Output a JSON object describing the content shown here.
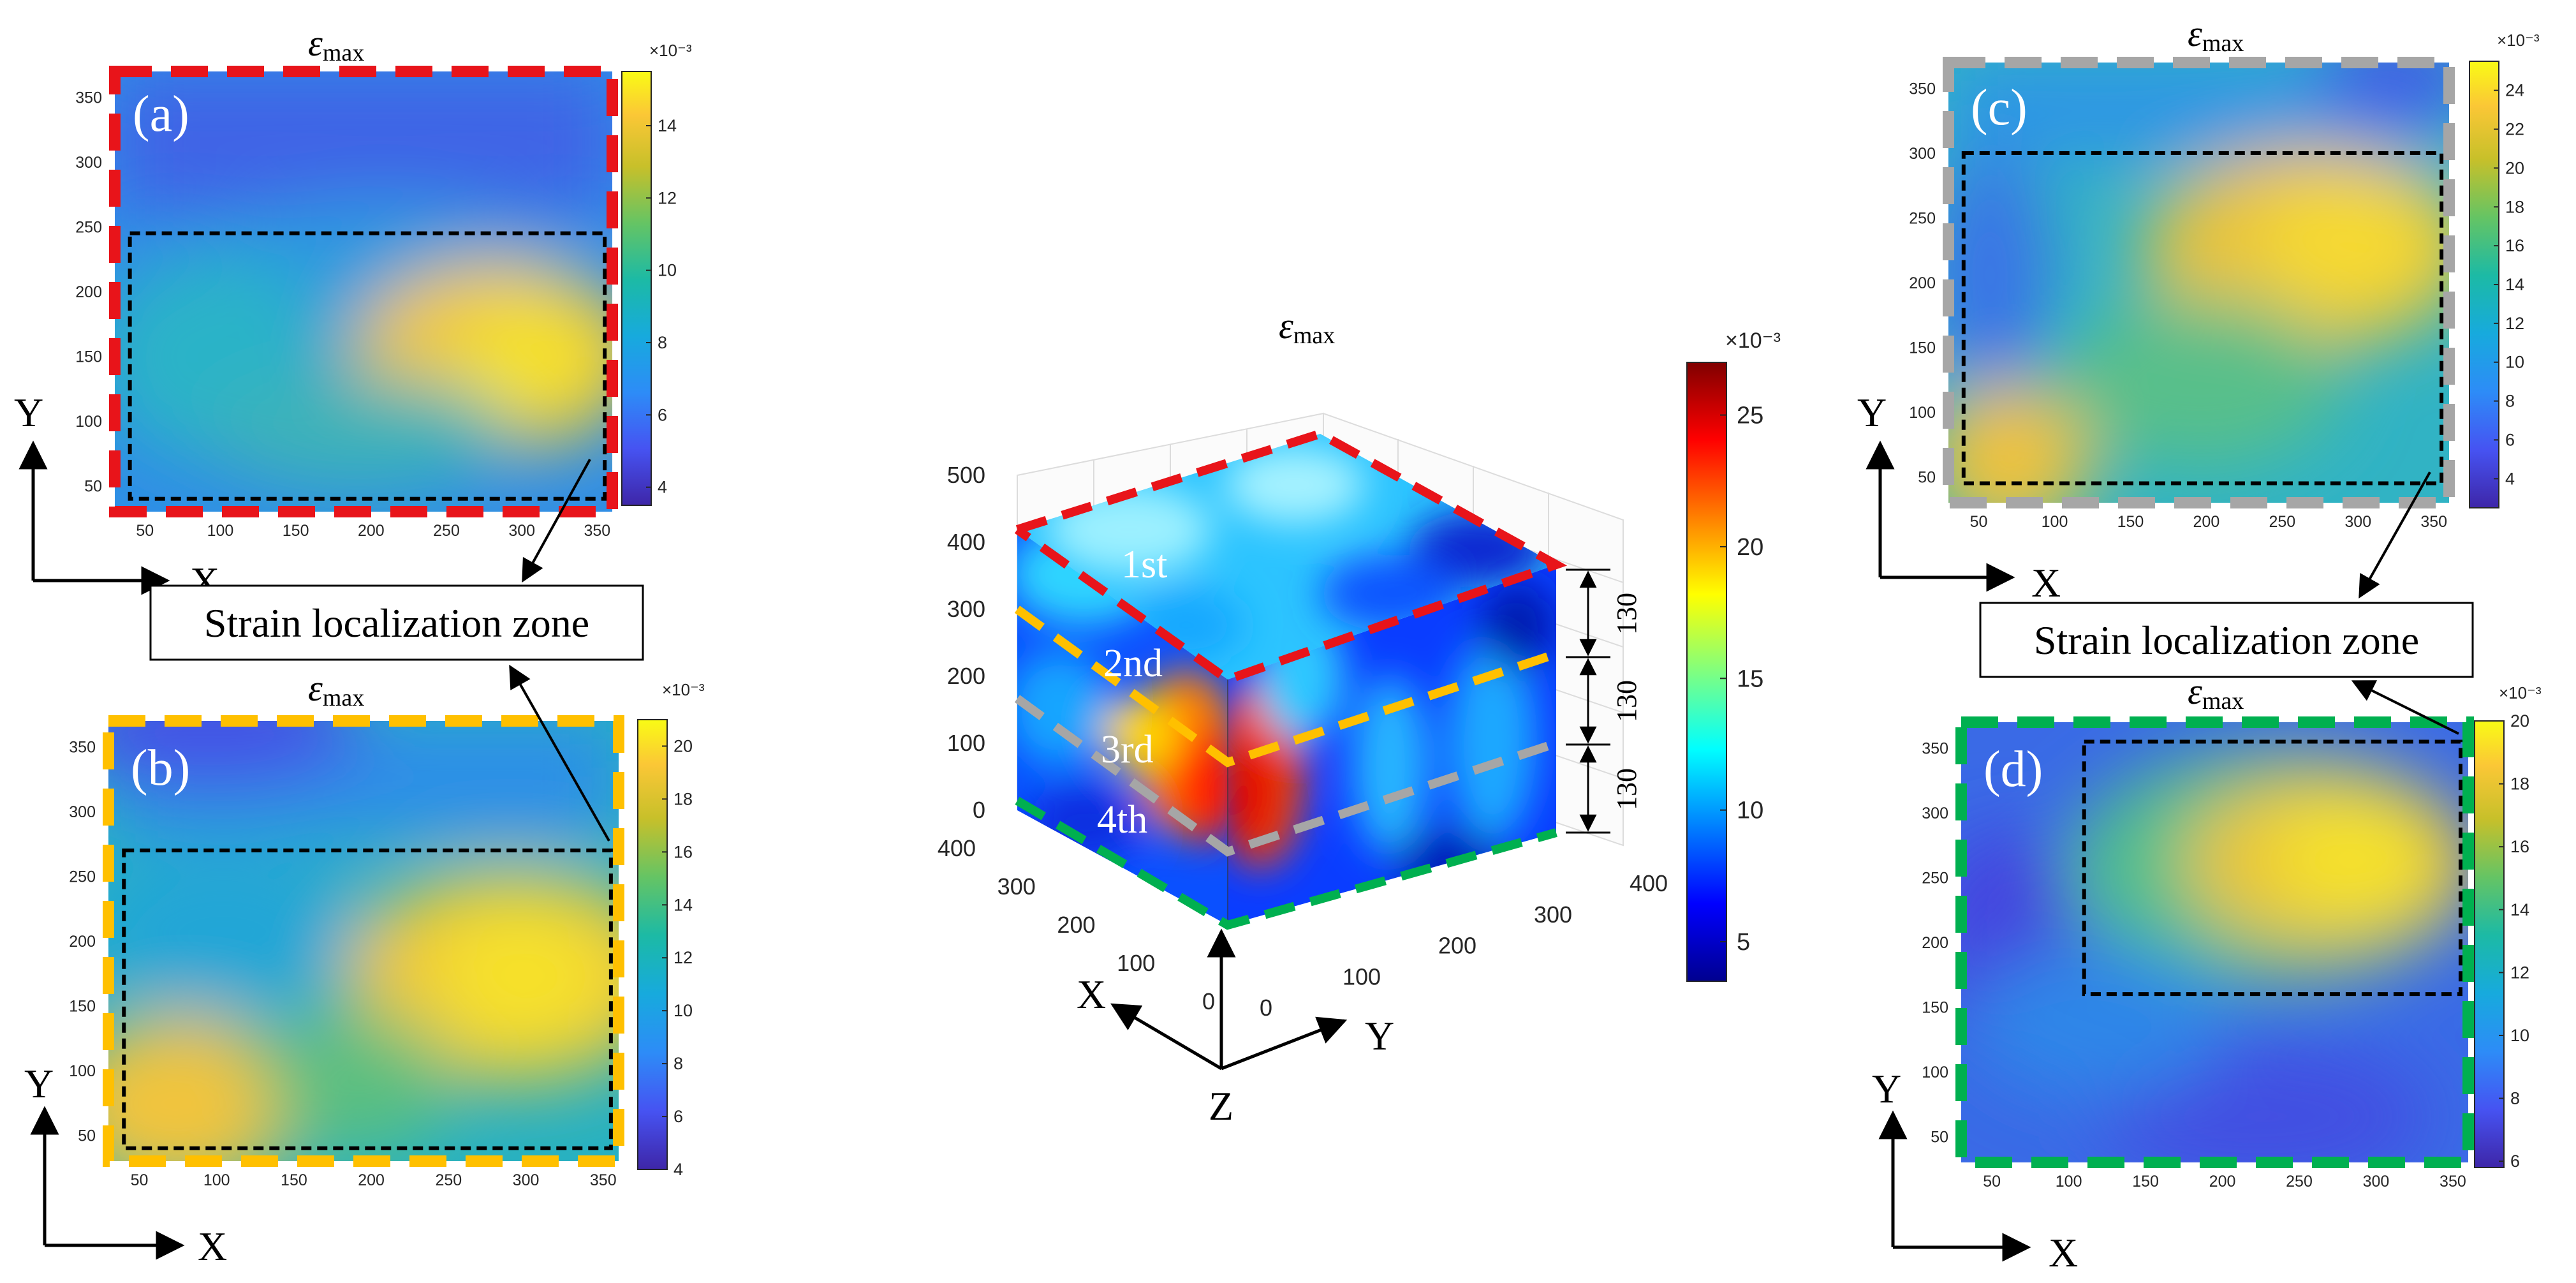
{
  "chart_data": [
    {
      "id": "a",
      "type": "heatmap",
      "panel_label": "(a)",
      "title": "ε",
      "title_sub": "max",
      "xlim": [
        30,
        360
      ],
      "ylim": [
        30,
        370
      ],
      "x_ticks": [
        "50",
        "100",
        "150",
        "200",
        "250",
        "300",
        "350"
      ],
      "y_ticks": [
        "50",
        "100",
        "150",
        "200",
        "250",
        "300",
        "350"
      ],
      "colorbar": {
        "multiplier": "×10⁻³",
        "min": 3.5,
        "max": 15.5,
        "ticks": [
          "4",
          "6",
          "8",
          "10",
          "12",
          "14"
        ]
      },
      "border_color": "#e8141a",
      "zone_box": {
        "x": [
          40,
          355
        ],
        "y": [
          40,
          245
        ]
      },
      "xlabel": "X",
      "ylabel": "Y"
    },
    {
      "id": "b",
      "type": "heatmap",
      "panel_label": "(b)",
      "title": "ε",
      "title_sub": "max",
      "xlim": [
        30,
        360
      ],
      "ylim": [
        30,
        370
      ],
      "x_ticks": [
        "50",
        "100",
        "150",
        "200",
        "250",
        "300",
        "350"
      ],
      "y_ticks": [
        "50",
        "100",
        "150",
        "200",
        "250",
        "300",
        "350"
      ],
      "colorbar": {
        "multiplier": "×10⁻³",
        "min": 4,
        "max": 21,
        "ticks": [
          "4",
          "6",
          "8",
          "10",
          "12",
          "14",
          "16",
          "18",
          "20"
        ]
      },
      "border_color": "#ffc000",
      "zone_box": {
        "x": [
          40,
          355
        ],
        "y": [
          40,
          270
        ]
      },
      "xlabel": "X",
      "ylabel": "Y"
    },
    {
      "id": "c",
      "type": "heatmap",
      "panel_label": "(c)",
      "title": "ε",
      "title_sub": "max",
      "xlim": [
        30,
        360
      ],
      "ylim": [
        30,
        370
      ],
      "x_ticks": [
        "50",
        "100",
        "150",
        "200",
        "250",
        "300",
        "350"
      ],
      "y_ticks": [
        "50",
        "100",
        "150",
        "200",
        "250",
        "300",
        "350"
      ],
      "colorbar": {
        "multiplier": "×10⁻³",
        "min": 2.5,
        "max": 25.5,
        "ticks": [
          "4",
          "6",
          "8",
          "10",
          "12",
          "14",
          "16",
          "18",
          "20",
          "22",
          "24"
        ]
      },
      "border_color": "#a6a6a6",
      "zone_box": {
        "x": [
          40,
          355
        ],
        "y": [
          45,
          300
        ]
      },
      "xlabel": "X",
      "ylabel": "Y"
    },
    {
      "id": "d",
      "type": "heatmap",
      "panel_label": "(d)",
      "title": "ε",
      "title_sub": "max",
      "xlim": [
        30,
        360
      ],
      "ylim": [
        30,
        370
      ],
      "x_ticks": [
        "50",
        "100",
        "150",
        "200",
        "250",
        "300",
        "350"
      ],
      "y_ticks": [
        "50",
        "100",
        "150",
        "200",
        "250",
        "300",
        "350"
      ],
      "colorbar": {
        "multiplier": "×10⁻³",
        "min": 5.8,
        "max": 20,
        "ticks": [
          "6",
          "8",
          "10",
          "12",
          "14",
          "16",
          "18",
          "20"
        ]
      },
      "border_color": "#00b050",
      "zone_box": {
        "x": [
          110,
          355
        ],
        "y": [
          160,
          355
        ]
      },
      "xlabel": "X",
      "ylabel": "Y"
    },
    {
      "id": "3d",
      "type": "heatmap",
      "title": "ε",
      "title_sub": "max",
      "xlim": [
        0,
        400
      ],
      "ylim": [
        0,
        400
      ],
      "zlim": [
        0,
        500
      ],
      "x_ticks": [
        "0",
        "100",
        "200",
        "300",
        "400"
      ],
      "y_ticks": [
        "0",
        "100",
        "200",
        "300",
        "400"
      ],
      "z_ticks": [
        "0",
        "100",
        "200",
        "300",
        "400",
        "500"
      ],
      "colorbar": {
        "multiplier": "×10⁻³",
        "min": 3.5,
        "max": 27,
        "ticks": [
          "5",
          "10",
          "15",
          "20",
          "25"
        ]
      },
      "layers": [
        "1st",
        "2nd",
        "3rd",
        "4th"
      ],
      "layer_colors": [
        "#e8141a",
        "#ffc000",
        "#a6a6a6",
        "#00b050"
      ],
      "layer_thickness": [
        "130",
        "130",
        "130"
      ],
      "xlabel": "X",
      "ylabel": "Y",
      "zlabel": "Z"
    }
  ],
  "annotations": {
    "zone_label": "Strain localization zone"
  }
}
